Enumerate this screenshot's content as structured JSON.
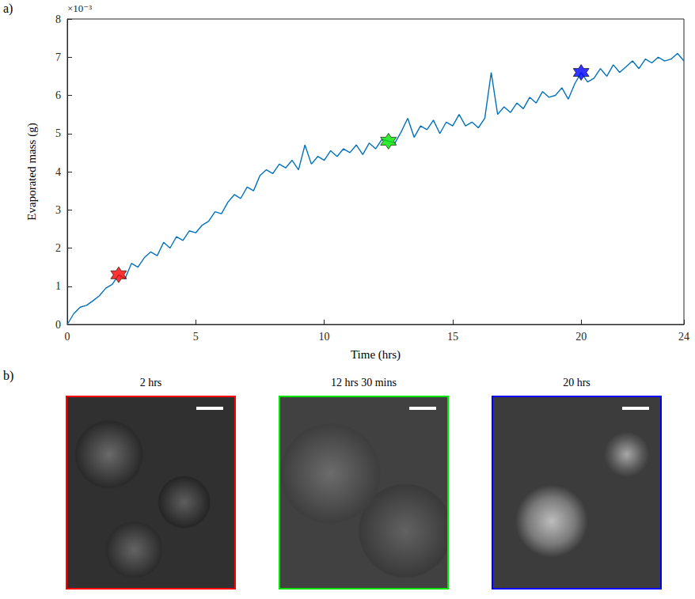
{
  "chart_data": {
    "type": "line",
    "panel_label": "a)",
    "x_label": "Time (hrs)",
    "y_label": "Evaporated mass (g)",
    "y_multiplier": "×10⁻³",
    "x": [
      0,
      0.25,
      0.5,
      0.75,
      1,
      1.25,
      1.5,
      1.75,
      2,
      2.25,
      2.5,
      2.75,
      3,
      3.25,
      3.5,
      3.75,
      4,
      4.25,
      4.5,
      4.75,
      5,
      5.25,
      5.5,
      5.75,
      6,
      6.25,
      6.5,
      6.75,
      7,
      7.25,
      7.5,
      7.75,
      8,
      8.25,
      8.5,
      8.75,
      9,
      9.25,
      9.5,
      9.75,
      10,
      10.25,
      10.5,
      10.75,
      11,
      11.25,
      11.5,
      11.75,
      12,
      12.25,
      12.5,
      12.75,
      13,
      13.25,
      13.5,
      13.75,
      14,
      14.25,
      14.5,
      14.75,
      15,
      15.25,
      15.5,
      15.75,
      16,
      16.25,
      16.5,
      16.75,
      17,
      17.25,
      17.5,
      17.75,
      18,
      18.25,
      18.5,
      18.75,
      19,
      19.25,
      19.5,
      19.75,
      20,
      20.25,
      20.5,
      20.75,
      21,
      21.25,
      21.5,
      21.75,
      22,
      22.25,
      22.5,
      22.75,
      23,
      23.25,
      23.5,
      23.75,
      24
    ],
    "series": [
      {
        "type": "line",
        "color": "#0072bd",
        "values": [
          0,
          0.28,
          0.45,
          0.5,
          0.62,
          0.75,
          0.95,
          1.05,
          1.3,
          1.2,
          1.6,
          1.5,
          1.75,
          1.9,
          1.8,
          2.15,
          2.0,
          2.3,
          2.2,
          2.45,
          2.4,
          2.6,
          2.7,
          2.95,
          2.9,
          3.2,
          3.4,
          3.3,
          3.6,
          3.5,
          3.9,
          4.05,
          3.95,
          4.2,
          4.1,
          4.3,
          4.05,
          4.7,
          4.2,
          4.4,
          4.3,
          4.55,
          4.4,
          4.6,
          4.5,
          4.7,
          4.45,
          4.75,
          4.6,
          4.85,
          4.8,
          4.75,
          5.05,
          5.4,
          4.9,
          5.2,
          5.1,
          5.35,
          5.0,
          5.3,
          5.2,
          5.5,
          5.2,
          5.3,
          5.15,
          5.4,
          6.6,
          5.5,
          5.7,
          5.55,
          5.8,
          5.65,
          5.95,
          5.8,
          6.1,
          5.95,
          6.0,
          6.2,
          5.9,
          6.3,
          6.6,
          6.35,
          6.45,
          6.7,
          6.5,
          6.8,
          6.6,
          6.75,
          6.9,
          6.7,
          6.95,
          6.85,
          7.0,
          6.9,
          6.95,
          7.1,
          6.9
        ]
      },
      {
        "type": "scatter",
        "marker": "star",
        "x": [
          2,
          12.5,
          20
        ],
        "values": [
          1.3,
          4.8,
          6.6
        ],
        "colors": [
          "#ff0000",
          "#00e600",
          "#0000ff"
        ]
      }
    ],
    "xlim": [
      0,
      24
    ],
    "xticks": [
      0,
      5,
      10,
      15,
      20,
      24
    ],
    "ylim": [
      0,
      8
    ],
    "yticks": [
      0,
      1,
      2,
      3,
      4,
      5,
      6,
      7,
      8
    ],
    "grid": false
  },
  "images": {
    "panel_label": "b)",
    "panels": [
      {
        "title": "2 hrs",
        "color": "#ff0000"
      },
      {
        "title": "12 hrs 30 mins",
        "color": "#00e600"
      },
      {
        "title": "20 hrs",
        "color": "#0000ff"
      }
    ]
  }
}
